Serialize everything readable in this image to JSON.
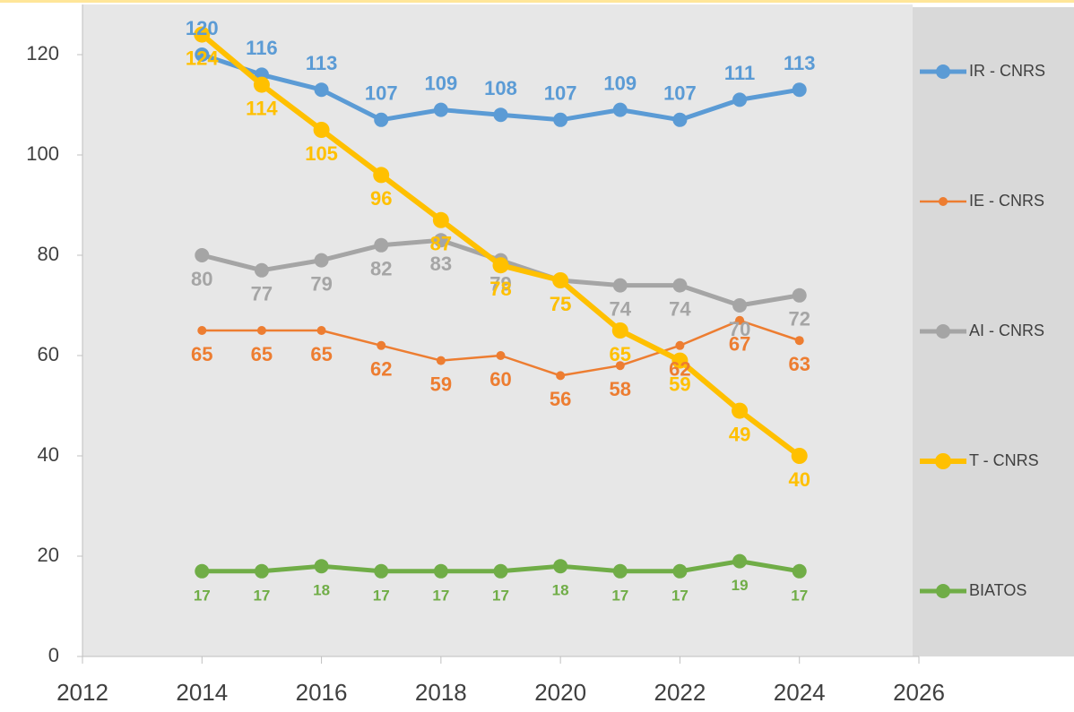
{
  "chart_data": {
    "type": "line",
    "x": [
      2014,
      2015,
      2016,
      2017,
      2018,
      2019,
      2020,
      2021,
      2022,
      2023,
      2024
    ],
    "series": [
      {
        "name": "IR - CNRS",
        "color": "#5b9bd5",
        "values": [
          120,
          116,
          113,
          107,
          109,
          108,
          107,
          109,
          107,
          111,
          113
        ]
      },
      {
        "name": "IE - CNRS",
        "color": "#ed7d31",
        "values": [
          65,
          65,
          65,
          62,
          59,
          60,
          56,
          58,
          62,
          67,
          63
        ]
      },
      {
        "name": "AI - CNRS",
        "color": "#a5a5a5",
        "values": [
          80,
          77,
          79,
          82,
          83,
          79,
          75,
          74,
          74,
          70,
          72
        ]
      },
      {
        "name": "T - CNRS",
        "color": "#ffc000",
        "values": [
          124,
          114,
          105,
          96,
          87,
          78,
          75,
          65,
          59,
          49,
          40
        ]
      },
      {
        "name": "BIATOS",
        "color": "#70ad47",
        "values": [
          17,
          17,
          18,
          17,
          17,
          17,
          18,
          17,
          17,
          19,
          17
        ]
      }
    ],
    "xlim": [
      2012,
      2026
    ],
    "xticks": [
      2012,
      2014,
      2016,
      2018,
      2020,
      2022,
      2024,
      2026
    ],
    "ylim": [
      0,
      130
    ],
    "yticks": [
      0,
      20,
      40,
      60,
      80,
      100,
      120
    ],
    "legend": "right"
  }
}
